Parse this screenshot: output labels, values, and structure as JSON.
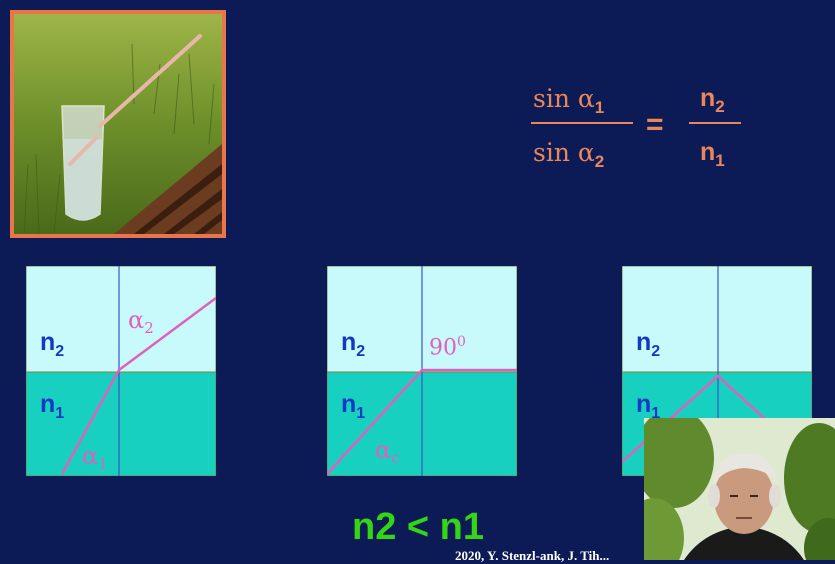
{
  "formula": {
    "lhs_num": "sin α",
    "lhs_num_sub": "1",
    "lhs_den": "sin α",
    "lhs_den_sub": "2",
    "equals": "=",
    "rhs_num": "n",
    "rhs_num_sub": "2",
    "rhs_den": "n",
    "rhs_den_sub": "1"
  },
  "panels": [
    {
      "top_label": "n",
      "top_sub": "2",
      "bottom_label": "n",
      "bottom_sub": "1",
      "angle_top": "α",
      "angle_top_sub": "2",
      "angle_bottom": "α",
      "angle_bottom_sub": "1"
    },
    {
      "top_label": "n",
      "top_sub": "2",
      "bottom_label": "n",
      "bottom_sub": "1",
      "angle_top": "90",
      "angle_top_sup": "0",
      "angle_bottom": "α",
      "angle_bottom_sub": "c"
    },
    {
      "top_label": "n",
      "top_sub": "2",
      "bottom_label": "n",
      "bottom_sub": "1"
    }
  ],
  "inequality": "n2 < n1",
  "credit": "2020, Y. Stenzl-ank, J. Tih...",
  "colors": {
    "background": "#0c1b56",
    "upper_medium": "#c9fafb",
    "lower_medium": "#18d0c0",
    "ray": "#e060c0",
    "normal_line": "#3a55c8",
    "formula": "#e8875a",
    "inequality": "#33d614"
  }
}
